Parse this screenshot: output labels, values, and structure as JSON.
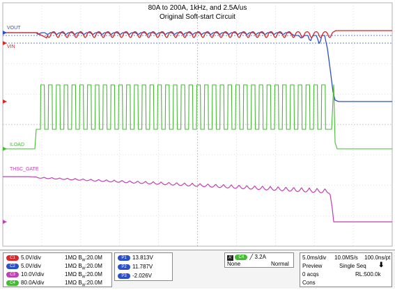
{
  "title": {
    "line1": "80A to 200A, 1kHz, and 2.5A/us",
    "line2": "Original  Soft-start Circuit"
  },
  "colors": {
    "vout": "#d8282a",
    "vin": "#2a50c8",
    "iload": "#44bb33",
    "gate": "#c040b0",
    "grid": "#c8c8c8",
    "background": "#ffffff"
  },
  "traces": {
    "vout_label": "VOUT",
    "vin_label": "VIN",
    "iload_label": "ILOAD",
    "gate_label": "THSC_GATE"
  },
  "channels": [
    {
      "id": "C1",
      "scale": "5.0V/div",
      "impedance": "1MΩ",
      "bw_label": "B",
      "bw_sub": "W",
      "bw_value": ":20.0M",
      "color": "#d8282a"
    },
    {
      "id": "C2",
      "scale": "5.0V/div",
      "impedance": "1MΩ",
      "bw_label": "B",
      "bw_sub": "W",
      "bw_value": ":20.0M",
      "color": "#2a50c8"
    },
    {
      "id": "C3",
      "scale": "10.0V/div",
      "impedance": "1MΩ",
      "bw_label": "B",
      "bw_sub": "W",
      "bw_value": ":20.0M",
      "color": "#c040b0"
    },
    {
      "id": "C4",
      "scale": "80.0A/div",
      "impedance": "1MΩ",
      "bw_label": "B",
      "bw_sub": "W",
      "bw_value": ":20.0M",
      "color": "#44bb33"
    }
  ],
  "measurements": [
    {
      "id": "P1",
      "value": "13.813V"
    },
    {
      "id": "P2",
      "value": "11.787V"
    },
    {
      "id": "P3",
      "value": "-2.026V"
    }
  ],
  "trigger": {
    "marker": "A'",
    "channel": "C4",
    "slope": "╱",
    "level": "3.2A",
    "mode_left": "None",
    "mode_right": "Normal"
  },
  "acquisition": {
    "timebase": "5.0ms/div",
    "sample_rate": "10.0MS/s",
    "resolution": "100.0ns/pt",
    "preview": "Preview",
    "seq": "Single Seq",
    "acqs": "0 acqs",
    "record_length": "RL:500.0k",
    "cons": "Cons"
  }
}
